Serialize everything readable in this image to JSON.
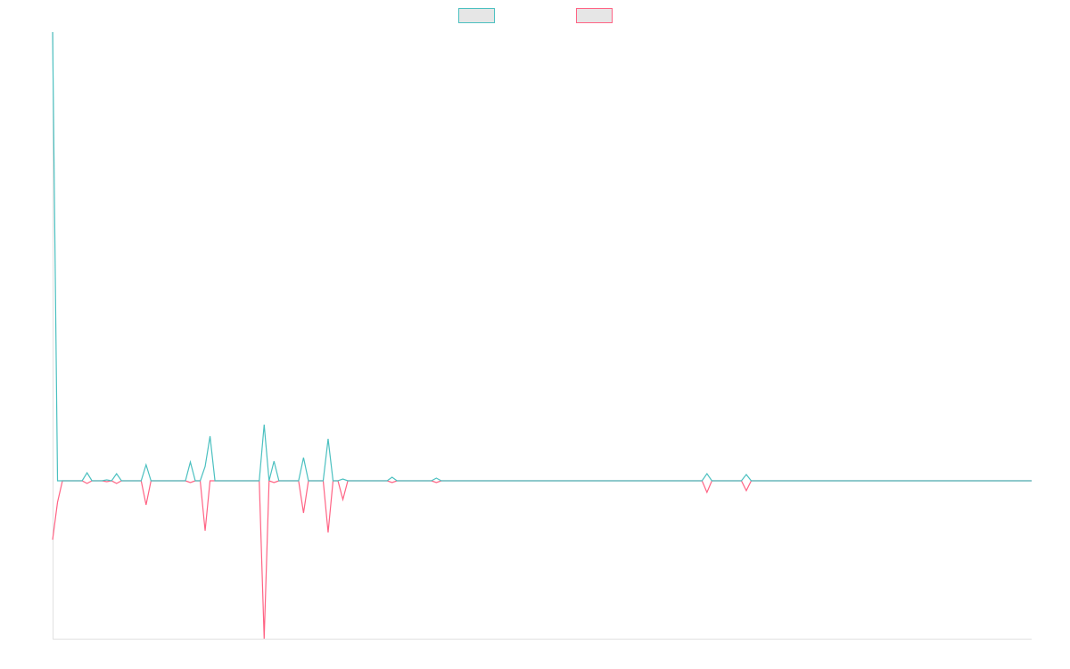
{
  "chart_data": {
    "type": "line",
    "categories": [
      null,
      null,
      null,
      null,
      null,
      null,
      null,
      null,
      null,
      null,
      null,
      null,
      null,
      null,
      null,
      null,
      null,
      null,
      null,
      null,
      null,
      null,
      null,
      null,
      null,
      null,
      null,
      null,
      null,
      null,
      null,
      null,
      null,
      null,
      null,
      null,
      null,
      null,
      null,
      null,
      null,
      null,
      null,
      null,
      null,
      null,
      null,
      null,
      null,
      null,
      null,
      null,
      null,
      null,
      null,
      null,
      null,
      null,
      null,
      null,
      null,
      null,
      null,
      null,
      null,
      null,
      null,
      null,
      null,
      null,
      null,
      null,
      null,
      null,
      null,
      null,
      null,
      null,
      null,
      null,
      null,
      null,
      null,
      null,
      null,
      null,
      null,
      null,
      null,
      null,
      null,
      null,
      null,
      null,
      null,
      null,
      null,
      null,
      null,
      null,
      null,
      null,
      null,
      null,
      null,
      null,
      null,
      null,
      null,
      null,
      null,
      null,
      null,
      null,
      null,
      null,
      null,
      null,
      null,
      null,
      null,
      null,
      null,
      null,
      null,
      null,
      null,
      null,
      null,
      null,
      null,
      null,
      null,
      null,
      null,
      null,
      null,
      null,
      null,
      null,
      null,
      null,
      null,
      null,
      null,
      null,
      null,
      null,
      null,
      null,
      null,
      null,
      null,
      null,
      null,
      null,
      null,
      null,
      null,
      null,
      null,
      null,
      null,
      null,
      null,
      null,
      null,
      null,
      null,
      null,
      null,
      null,
      null,
      null,
      null,
      null,
      null,
      null,
      null,
      null,
      null,
      null,
      null,
      null,
      null,
      null,
      null,
      null,
      null,
      null,
      null,
      null,
      null,
      null,
      null,
      null,
      null,
      null,
      null,
      null
    ],
    "series": [
      {
        "color": "#4bc0c0",
        "values": [
          503,
          0,
          0,
          0,
          0,
          0,
          0,
          9,
          0,
          0,
          0,
          1,
          0,
          8,
          0,
          0,
          0,
          0,
          0,
          18,
          0,
          0,
          0,
          0,
          0,
          0,
          0,
          0,
          21,
          0,
          0,
          16,
          50,
          0,
          0,
          0,
          0,
          0,
          0,
          0,
          0,
          0,
          0,
          63,
          0,
          22,
          0,
          0,
          0,
          0,
          0,
          26,
          0,
          0,
          0,
          0,
          47,
          0,
          0,
          2,
          0,
          0,
          0,
          0,
          0,
          0,
          0,
          0,
          0,
          4,
          0,
          0,
          0,
          0,
          0,
          0,
          0,
          0,
          3,
          0,
          0,
          0,
          0,
          0,
          0,
          0,
          0,
          0,
          0,
          0,
          0,
          0,
          0,
          0,
          0,
          0,
          0,
          0,
          0,
          0,
          0,
          0,
          0,
          0,
          0,
          0,
          0,
          0,
          0,
          0,
          0,
          0,
          0,
          0,
          0,
          0,
          0,
          0,
          0,
          0,
          0,
          0,
          0,
          0,
          0,
          0,
          0,
          0,
          0,
          0,
          0,
          0,
          0,
          8,
          0,
          0,
          0,
          0,
          0,
          0,
          0,
          7,
          0,
          0,
          0,
          0,
          0,
          0,
          0,
          0,
          0,
          0,
          0,
          0,
          0,
          0,
          0,
          0,
          0,
          0,
          0,
          0,
          0,
          0,
          0,
          0,
          0,
          0,
          0,
          0,
          0,
          0,
          0,
          0,
          0,
          0,
          0,
          0,
          0,
          0,
          0,
          0,
          0,
          0,
          0,
          0,
          0,
          0,
          0,
          0,
          0,
          0,
          0,
          0,
          0,
          0,
          0,
          0,
          0,
          0
        ]
      },
      {
        "color": "#ff6384",
        "values": [
          -66,
          -24,
          0,
          0,
          0,
          0,
          0,
          -3,
          0,
          0,
          0,
          -1,
          0,
          -3,
          0,
          0,
          0,
          0,
          0,
          -27,
          0,
          0,
          0,
          0,
          0,
          0,
          0,
          0,
          -2,
          0,
          0,
          -56,
          0,
          0,
          0,
          0,
          0,
          0,
          0,
          0,
          0,
          0,
          0,
          -177,
          0,
          -2,
          0,
          0,
          0,
          0,
          0,
          -36,
          0,
          0,
          0,
          0,
          -58,
          0,
          0,
          -21,
          0,
          0,
          0,
          0,
          0,
          0,
          0,
          0,
          0,
          -2,
          0,
          0,
          0,
          0,
          0,
          0,
          0,
          0,
          -2,
          0,
          0,
          0,
          0,
          0,
          0,
          0,
          0,
          0,
          0,
          0,
          0,
          0,
          0,
          0,
          0,
          0,
          0,
          0,
          0,
          0,
          0,
          0,
          0,
          0,
          0,
          0,
          0,
          0,
          0,
          0,
          0,
          0,
          0,
          0,
          0,
          0,
          0,
          0,
          0,
          0,
          0,
          0,
          0,
          0,
          0,
          0,
          0,
          0,
          0,
          0,
          0,
          0,
          0,
          -13,
          0,
          0,
          0,
          0,
          0,
          0,
          0,
          -11,
          0,
          0,
          0,
          0,
          0,
          0,
          0,
          0,
          0,
          0,
          0,
          0,
          0,
          0,
          0,
          0,
          0,
          0,
          0,
          0,
          0,
          0,
          0,
          0,
          0,
          0,
          0,
          0,
          0,
          0,
          0,
          0,
          0,
          0,
          0,
          0,
          0,
          0,
          0,
          0,
          0,
          0,
          0,
          0,
          0,
          0,
          0,
          0,
          0,
          0,
          0,
          0,
          0,
          0,
          0,
          0,
          0,
          0
        ]
      }
    ],
    "ylim": [
      -177,
      503
    ]
  }
}
